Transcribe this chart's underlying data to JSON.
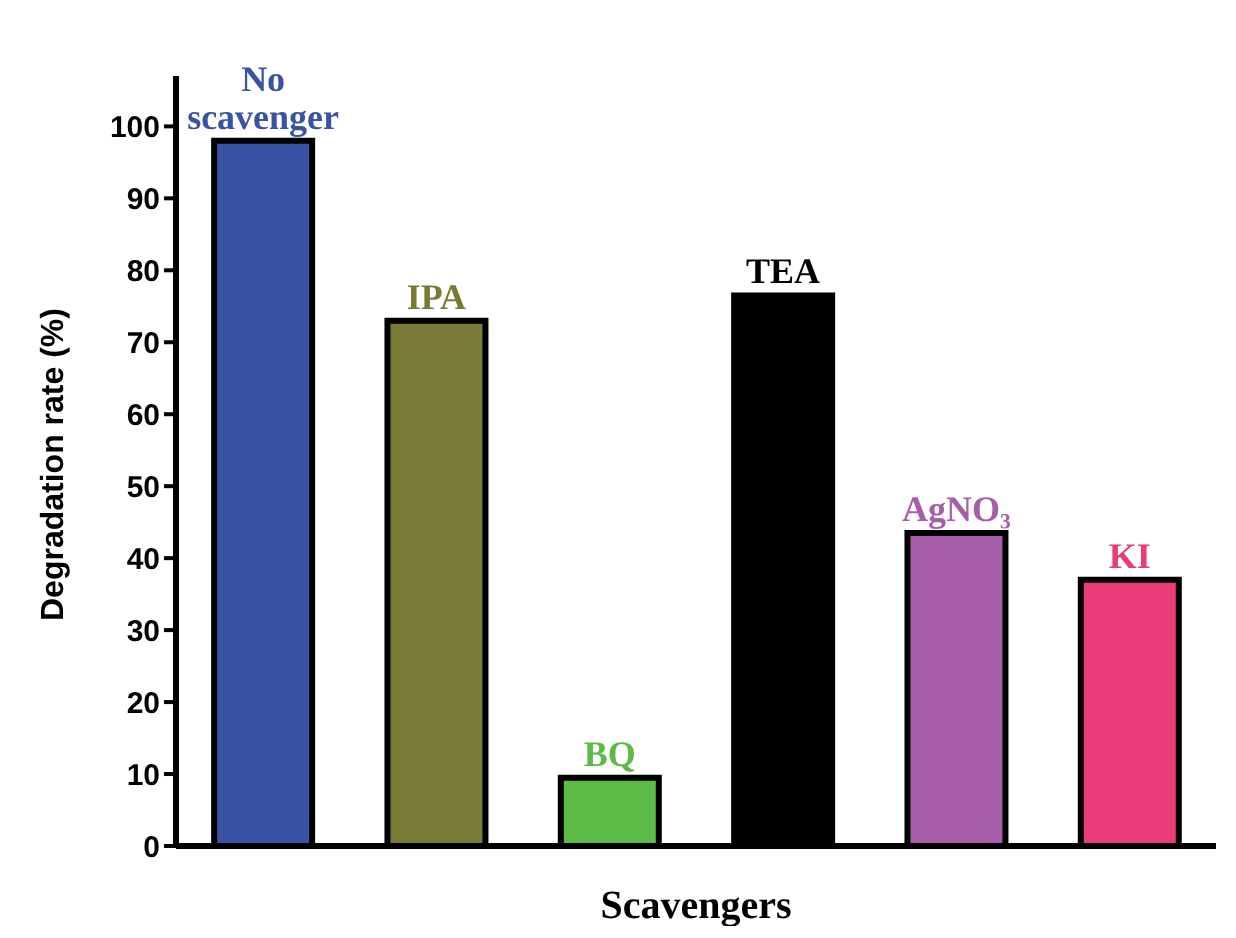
{
  "chart_data": {
    "type": "bar",
    "xlabel": "Scavengers",
    "ylabel": "Degradation rate (%)",
    "categories": [
      "No scavenger",
      "IPA",
      "BQ",
      "TEA",
      "AgNO₃",
      "KI"
    ],
    "values": [
      98,
      73,
      9.5,
      76.5,
      43.5,
      37
    ],
    "colors": [
      "#3953a4",
      "#797a36",
      "#5cba47",
      "#000000",
      "#a65ea8",
      "#ea3c7b"
    ],
    "ylim": [
      0,
      107
    ],
    "yticks": [
      0,
      10,
      20,
      30,
      40,
      50,
      60,
      70,
      80,
      90,
      100
    ],
    "tick_labels": "y"
  }
}
